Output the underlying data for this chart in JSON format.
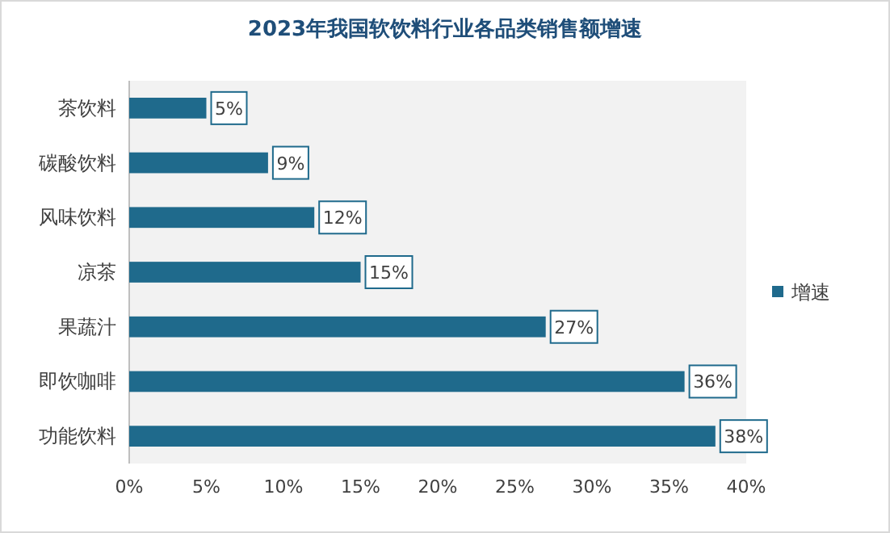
{
  "chart_data": {
    "type": "bar",
    "orientation": "horizontal",
    "title": "2023年我国软饮料行业各品类销售额增速",
    "categories": [
      "茶饮料",
      "碳酸饮料",
      "风味饮料",
      "凉茶",
      "果蔬汁",
      "即饮咖啡",
      "功能饮料"
    ],
    "series": [
      {
        "name": "增速",
        "color": "#1f6a8c",
        "values": [
          5,
          9,
          12,
          15,
          27,
          36,
          38
        ],
        "value_labels": [
          "5%",
          "9%",
          "12%",
          "15%",
          "27%",
          "36%",
          "38%"
        ]
      }
    ],
    "xlim": [
      0,
      40
    ],
    "xticks": [
      {
        "value": 0,
        "label": "0%"
      },
      {
        "value": 5,
        "label": "5%"
      },
      {
        "value": 10,
        "label": "10%"
      },
      {
        "value": 15,
        "label": "15%"
      },
      {
        "value": 20,
        "label": "20%"
      },
      {
        "value": 25,
        "label": "25%"
      },
      {
        "value": 30,
        "label": "30%"
      },
      {
        "value": 35,
        "label": "35%"
      },
      {
        "value": 40,
        "label": "40%"
      }
    ],
    "legend": "right",
    "grid": false
  }
}
